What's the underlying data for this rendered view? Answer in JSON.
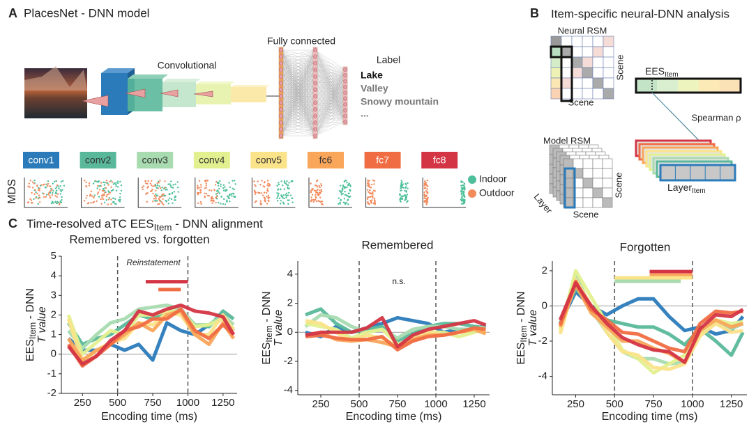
{
  "panel_a": {
    "letter": "A",
    "title": "PlacesNet - DNN model",
    "conv_label": "Convolutional",
    "fc_label": "Fully connected",
    "label_header": "Label",
    "labels": [
      "Lake",
      "Valley",
      "Snowy mountain",
      "..."
    ],
    "mds_label": "MDS",
    "legend": [
      {
        "name": "Indoor",
        "color": "#4dbf9a"
      },
      {
        "name": "Outdoor",
        "color": "#f28a5c"
      }
    ]
  },
  "panel_b": {
    "letter": "B",
    "title": "Item-specific neural-DNN analysis",
    "neural_rsm": "Neural RSM",
    "model_rsm": "Model RSM",
    "scene": "Scene",
    "ees": [
      "EES",
      "Item"
    ],
    "spearman": "Spearman ρ",
    "layer": "Layer",
    "layer_item": [
      "Layer",
      "Item"
    ]
  },
  "panel_c": {
    "letter": "C",
    "title": [
      "Time-resolved aTC EES",
      "Item",
      " - DNN alignment"
    ]
  },
  "chart_data": [
    {
      "type": "line",
      "title": "Remembered vs. forgotten",
      "annotation": "Reinstatement",
      "xlabel": "Encoding time (ms)",
      "ylabel": [
        "EES",
        "Item",
        " - DNN"
      ],
      "ylabel_2": "T value",
      "x": [
        150,
        250,
        350,
        450,
        550,
        650,
        750,
        850,
        950,
        1050,
        1150,
        1250,
        1325
      ],
      "xlim": [
        100,
        1350
      ],
      "xticks": [
        250,
        500,
        750,
        1000,
        1250
      ],
      "ylim": [
        -2,
        5
      ],
      "yticks": [
        -2,
        -1,
        0,
        1,
        2,
        3,
        4,
        5
      ],
      "vlines": [
        500,
        1000
      ],
      "zero_line": true,
      "series": [
        {
          "name": "conv1",
          "color": "#2b7bba",
          "values": [
            0.8,
            0.2,
            0.2,
            0.5,
            0.2,
            0.5,
            -0.3,
            1.6,
            1.2,
            1.0,
            1.5,
            2.0,
            1.2
          ]
        },
        {
          "name": "conv2",
          "color": "#5ab89a",
          "values": [
            1.6,
            0.5,
            0.8,
            1.0,
            1.5,
            2.0,
            1.8,
            2.2,
            2.2,
            1.5,
            1.4,
            2.2,
            1.8
          ]
        },
        {
          "name": "conv3",
          "color": "#a8dbb0",
          "values": [
            1.2,
            0.3,
            1.0,
            1.6,
            1.8,
            2.3,
            2.4,
            2.5,
            2.3,
            1.5,
            1.5,
            2.0,
            1.5
          ]
        },
        {
          "name": "conv4",
          "color": "#e3f08f",
          "values": [
            2.0,
            0.0,
            0.6,
            1.2,
            1.0,
            2.0,
            2.0,
            2.2,
            2.2,
            1.4,
            1.5,
            1.8,
            1.3
          ]
        },
        {
          "name": "conv5",
          "color": "#fbe38a",
          "values": [
            1.8,
            -0.4,
            0.2,
            0.6,
            0.8,
            1.6,
            1.5,
            2.1,
            2.0,
            1.0,
            1.0,
            2.0,
            1.2
          ]
        },
        {
          "name": "fc6",
          "color": "#f9a55a",
          "values": [
            0.8,
            -0.3,
            0.2,
            0.5,
            1.0,
            1.6,
            1.2,
            2.0,
            2.2,
            1.0,
            0.5,
            1.6,
            0.8
          ]
        },
        {
          "name": "fc7",
          "color": "#f06d43",
          "values": [
            0.5,
            -0.6,
            -0.1,
            0.5,
            1.2,
            1.4,
            1.8,
            1.8,
            2.3,
            1.2,
            0.8,
            1.5,
            1.0
          ]
        },
        {
          "name": "fc8",
          "color": "#d43545",
          "values": [
            0.4,
            -0.5,
            -0.1,
            0.7,
            1.2,
            2.2,
            2.0,
            2.3,
            2.5,
            2.2,
            2.1,
            1.9,
            1.0
          ]
        }
      ],
      "sig_bars": [
        {
          "color": "#d43545",
          "x": [
            700,
            1000
          ],
          "y": 3.7
        },
        {
          "color": "#f06d43",
          "x": [
            790,
            950
          ],
          "y": 3.3
        }
      ]
    },
    {
      "type": "line",
      "title": "Remembered",
      "annotation": "n.s.",
      "xlabel": "Encoding time (ms)",
      "ylabel": [
        "EES",
        "Item",
        " - DNN"
      ],
      "ylabel_2": "T value",
      "x": [
        150,
        250,
        350,
        450,
        550,
        650,
        750,
        850,
        950,
        1050,
        1150,
        1250,
        1325
      ],
      "xlim": [
        100,
        1350
      ],
      "xticks": [
        250,
        500,
        750,
        1000,
        1250
      ],
      "ylim": [
        -4.3,
        4.9
      ],
      "yticks": [
        -4,
        -2,
        0,
        2,
        4
      ],
      "vlines": [
        500,
        1000
      ],
      "zero_line": true,
      "series": [
        {
          "color": "#2b7bba",
          "values": [
            0.0,
            -0.3,
            0.4,
            0.0,
            0.3,
            0.6,
            1.0,
            0.8,
            0.6,
            0.0,
            0.2,
            0.2,
            0.5
          ]
        },
        {
          "color": "#5ab89a",
          "values": [
            1.2,
            1.6,
            0.6,
            0.0,
            0.2,
            0.4,
            -0.6,
            -0.1,
            0.4,
            0.6,
            0.6,
            0.4,
            0.3
          ]
        },
        {
          "color": "#a8dbb0",
          "values": [
            0.4,
            1.2,
            1.0,
            0.4,
            0.0,
            0.2,
            -0.4,
            0.2,
            0.4,
            0.4,
            0.2,
            0.2,
            0.4
          ]
        },
        {
          "color": "#e3f08f",
          "values": [
            0.6,
            0.4,
            0.2,
            -0.4,
            0.0,
            0.2,
            -0.8,
            -0.6,
            0.0,
            0.0,
            -0.3,
            0.0,
            0.2
          ]
        },
        {
          "color": "#fbe38a",
          "values": [
            0.8,
            0.6,
            0.0,
            -0.6,
            -0.2,
            -0.4,
            -1.0,
            -0.4,
            0.0,
            -0.2,
            0.0,
            0.2,
            0.0
          ]
        },
        {
          "color": "#f9a55a",
          "values": [
            -0.2,
            0.0,
            -0.5,
            -0.6,
            -0.5,
            -0.7,
            -1.0,
            -0.5,
            -0.2,
            -0.2,
            0.0,
            0.2,
            -0.1
          ]
        },
        {
          "color": "#f06d43",
          "values": [
            -0.3,
            -0.2,
            -0.4,
            -0.5,
            -0.5,
            -0.3,
            -1.2,
            -0.6,
            -0.3,
            -0.2,
            0.0,
            0.3,
            0.2
          ]
        },
        {
          "color": "#d43545",
          "values": [
            -0.2,
            0.0,
            0.0,
            0.0,
            0.3,
            1.0,
            -1.0,
            -0.2,
            0.2,
            0.4,
            0.6,
            0.8,
            0.5
          ]
        }
      ],
      "sig_bars": []
    },
    {
      "type": "line",
      "title": "Forgotten",
      "xlabel": "Encoding time (ms)",
      "ylabel": [
        "EES",
        "Item",
        " - DNN"
      ],
      "ylabel_2": "T value",
      "x": [
        150,
        250,
        350,
        450,
        550,
        650,
        750,
        850,
        950,
        1050,
        1150,
        1250,
        1325
      ],
      "xlim": [
        100,
        1350
      ],
      "xticks": [
        250,
        500,
        750,
        1000,
        1250
      ],
      "ylim": [
        -5.05,
        2.55
      ],
      "yticks": [
        -4,
        -2,
        0,
        2
      ],
      "vlines": [
        500,
        1000
      ],
      "zero_line": true,
      "series": [
        {
          "color": "#2b7bba",
          "values": [
            -1.0,
            0.8,
            0.0,
            -0.5,
            0.0,
            0.4,
            0.4,
            -0.6,
            -1.4,
            -1.2,
            -1.6,
            -1.4,
            -0.6
          ]
        },
        {
          "color": "#5ab89a",
          "values": [
            -1.0,
            1.0,
            0.0,
            -0.8,
            -1.0,
            -1.2,
            -1.2,
            -1.6,
            -2.2,
            -1.3,
            -2.0,
            -2.8,
            -1.5
          ]
        },
        {
          "color": "#a8dbb0",
          "values": [
            -1.2,
            1.8,
            -0.2,
            -1.5,
            -2.6,
            -3.0,
            -3.0,
            -3.3,
            -3.2,
            -1.4,
            -1.0,
            -1.3,
            -1.0
          ]
        },
        {
          "color": "#e3f08f",
          "values": [
            -1.4,
            2.0,
            0.5,
            -1.0,
            -2.5,
            -3.0,
            -3.8,
            -3.3,
            -2.8,
            -1.5,
            -0.8,
            -1.0,
            -0.9
          ]
        },
        {
          "color": "#fbe38a",
          "values": [
            -1.6,
            1.5,
            0.0,
            -1.5,
            -2.6,
            -2.8,
            -3.5,
            -3.6,
            -3.3,
            -1.7,
            -1.0,
            -1.5,
            -1.4
          ]
        },
        {
          "color": "#f9a55a",
          "values": [
            -1.2,
            1.2,
            -0.4,
            -1.2,
            -2.0,
            -2.0,
            -2.4,
            -2.7,
            -3.2,
            -1.4,
            -0.8,
            -1.2,
            -1.0
          ]
        },
        {
          "color": "#f06d43",
          "values": [
            -1.1,
            1.4,
            -0.2,
            -0.8,
            -1.5,
            -1.6,
            -2.0,
            -2.4,
            -2.6,
            -1.0,
            -0.3,
            -0.4,
            -0.3
          ]
        },
        {
          "color": "#d43545",
          "values": [
            -0.8,
            1.3,
            0.0,
            -1.0,
            -1.8,
            -2.2,
            -2.5,
            -2.6,
            -3.2,
            -1.3,
            -0.5,
            -0.6,
            -0.2
          ]
        }
      ],
      "sig_bars": [
        {
          "color": "#d43545",
          "x": [
            725,
            1000
          ],
          "y": 1.95
        },
        {
          "color": "#f9a55a",
          "x": [
            725,
            1000
          ],
          "y": 1.75
        },
        {
          "color": "#fbe38a",
          "x": [
            500,
            1000
          ],
          "y": 1.6
        },
        {
          "color": "#a8dbb0",
          "x": [
            500,
            925
          ],
          "y": 1.4
        }
      ]
    }
  ]
}
